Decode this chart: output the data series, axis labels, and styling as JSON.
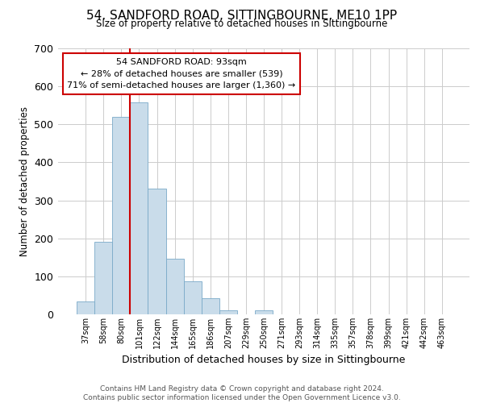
{
  "title": "54, SANDFORD ROAD, SITTINGBOURNE, ME10 1PP",
  "subtitle": "Size of property relative to detached houses in Sittingbourne",
  "xlabel": "Distribution of detached houses by size in Sittingbourne",
  "ylabel": "Number of detached properties",
  "bar_labels": [
    "37sqm",
    "58sqm",
    "80sqm",
    "101sqm",
    "122sqm",
    "144sqm",
    "165sqm",
    "186sqm",
    "207sqm",
    "229sqm",
    "250sqm",
    "271sqm",
    "293sqm",
    "314sqm",
    "335sqm",
    "357sqm",
    "378sqm",
    "399sqm",
    "421sqm",
    "442sqm",
    "463sqm"
  ],
  "bar_values": [
    33,
    190,
    520,
    558,
    330,
    147,
    87,
    42,
    11,
    0,
    11,
    0,
    0,
    0,
    0,
    0,
    0,
    0,
    0,
    0,
    0
  ],
  "bar_color": "#c9dcea",
  "bar_edge_color": "#7aaac8",
  "ylim": [
    0,
    700
  ],
  "yticks": [
    0,
    100,
    200,
    300,
    400,
    500,
    600,
    700
  ],
  "annotation_line1": "54 SANDFORD ROAD: 93sqm",
  "annotation_line2": "← 28% of detached houses are smaller (539)",
  "annotation_line3": "71% of semi-detached houses are larger (1,360) →",
  "annotation_box_color": "#ffffff",
  "annotation_box_edge_color": "#cc0000",
  "footer_line1": "Contains HM Land Registry data © Crown copyright and database right 2024.",
  "footer_line2": "Contains public sector information licensed under the Open Government Licence v3.0.",
  "property_line_color": "#cc0000",
  "background_color": "#ffffff",
  "grid_color": "#cccccc"
}
